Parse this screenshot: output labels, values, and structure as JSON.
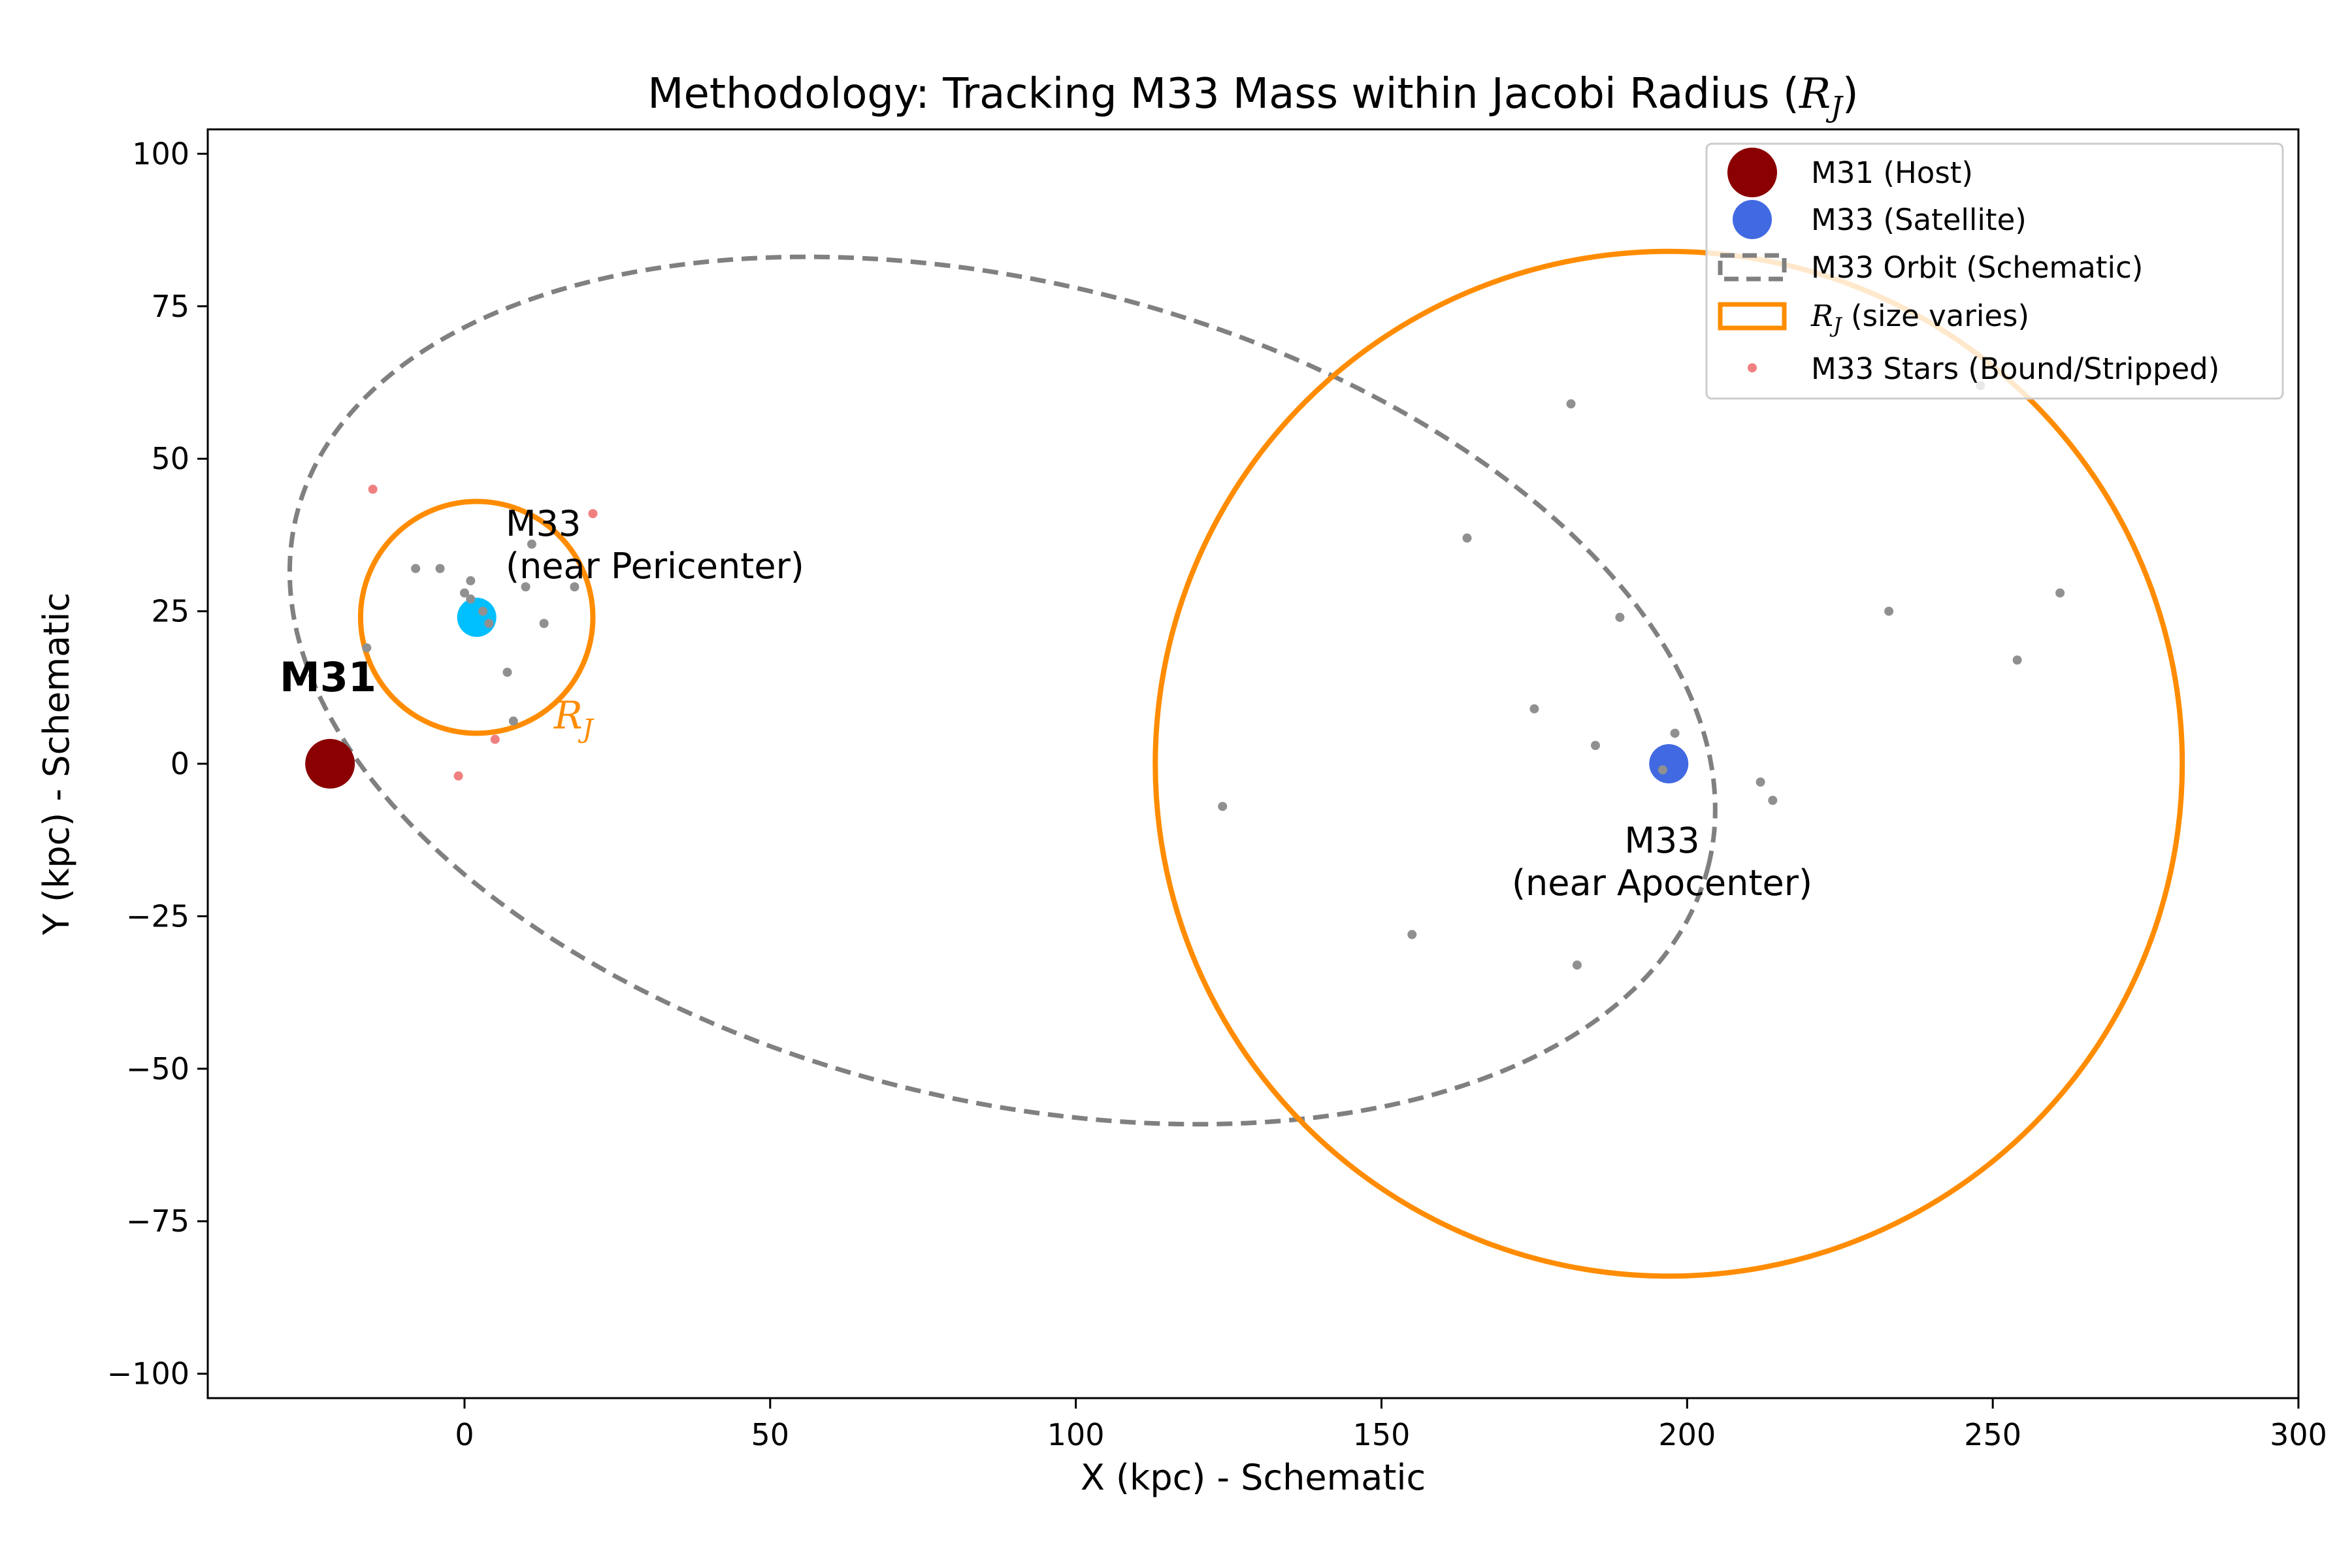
{
  "chart_data": {
    "type": "scatter",
    "title": "Methodology: Tracking M33 Mass within Jacobi Radius (R_J)",
    "title_parts": {
      "text": "Methodology: Tracking M33 Mass within Jacobi Radius (",
      "sym": "R",
      "sub": "J",
      "close": ")"
    },
    "xlabel": "X (kpc) - Schematic",
    "ylabel": "Y (kpc) - Schematic",
    "xlim": [
      -42,
      300
    ],
    "ylim": [
      -104,
      104
    ],
    "xticks": [
      0,
      50,
      100,
      150,
      200,
      250,
      300
    ],
    "yticks": [
      -100,
      -75,
      -50,
      -25,
      0,
      25,
      50,
      75,
      100
    ],
    "xtick_labels": [
      "0",
      "50",
      "100",
      "150",
      "200",
      "250",
      "300"
    ],
    "ytick_labels": [
      "−100",
      "−75",
      "−50",
      "−25",
      "0",
      "25",
      "50",
      "75",
      "100"
    ],
    "grid": false,
    "legend_position": "top-right",
    "colors": {
      "m31": "#8b0000",
      "m33": "#4169e1",
      "m33_peri": "#00bfff",
      "orbit": "#808080",
      "rj": "#ff8c00",
      "stars_grey": "#909090",
      "stars_red": "#f08080"
    },
    "m31": {
      "name": "M31 (Host)",
      "x": -22,
      "y": 0
    },
    "m33_apo": {
      "name": "M33 (Satellite)",
      "x": 197,
      "y": 0
    },
    "m33_peri": {
      "x": 2,
      "y": 24
    },
    "orbit": {
      "name": "M33 Orbit (Schematic)",
      "cx": 88,
      "cy": 12,
      "a": 119,
      "b": 67,
      "angle_deg": -14
    },
    "rj_circles": [
      {
        "cx": 2,
        "cy": 24,
        "r": 19
      },
      {
        "cx": 197,
        "cy": 0,
        "r": 84
      }
    ],
    "legend": {
      "m31": "M31 (Host)",
      "m33": "M33 (Satellite)",
      "orbit": "M33 Orbit (Schematic)",
      "rj_sym": "R",
      "rj_sub": "J",
      "rj_rest": " (size varies)",
      "stars": "M33 Stars (Bound/Stripped)"
    },
    "annotations": {
      "m31_label": "M31",
      "peri_line1": "M33",
      "peri_line2": "(near Pericenter)",
      "apo_line1": "M33",
      "apo_line2": "(near Apocenter)",
      "rj_sym": "R",
      "rj_sub": "J"
    },
    "stars_grey": [
      [
        -8,
        32
      ],
      [
        -4,
        32
      ],
      [
        0,
        28
      ],
      [
        1,
        30
      ],
      [
        1,
        27
      ],
      [
        3,
        25
      ],
      [
        4,
        23
      ],
      [
        10,
        29
      ],
      [
        11,
        36
      ],
      [
        13,
        23
      ],
      [
        18,
        29
      ],
      [
        7,
        15
      ],
      [
        8,
        7
      ],
      [
        -16,
        19
      ],
      [
        124,
        -7
      ],
      [
        155,
        -28
      ],
      [
        164,
        37
      ],
      [
        175,
        9
      ],
      [
        181,
        59
      ],
      [
        182,
        -33
      ],
      [
        185,
        3
      ],
      [
        189,
        24
      ],
      [
        198,
        5
      ],
      [
        196,
        -1
      ],
      [
        212,
        -3
      ],
      [
        214,
        -6
      ],
      [
        233,
        25
      ],
      [
        248,
        62
      ],
      [
        254,
        17
      ],
      [
        261,
        28
      ]
    ],
    "stars_red": [
      [
        -15,
        45
      ],
      [
        21,
        41
      ],
      [
        -1,
        -2
      ],
      [
        5,
        4
      ]
    ]
  }
}
